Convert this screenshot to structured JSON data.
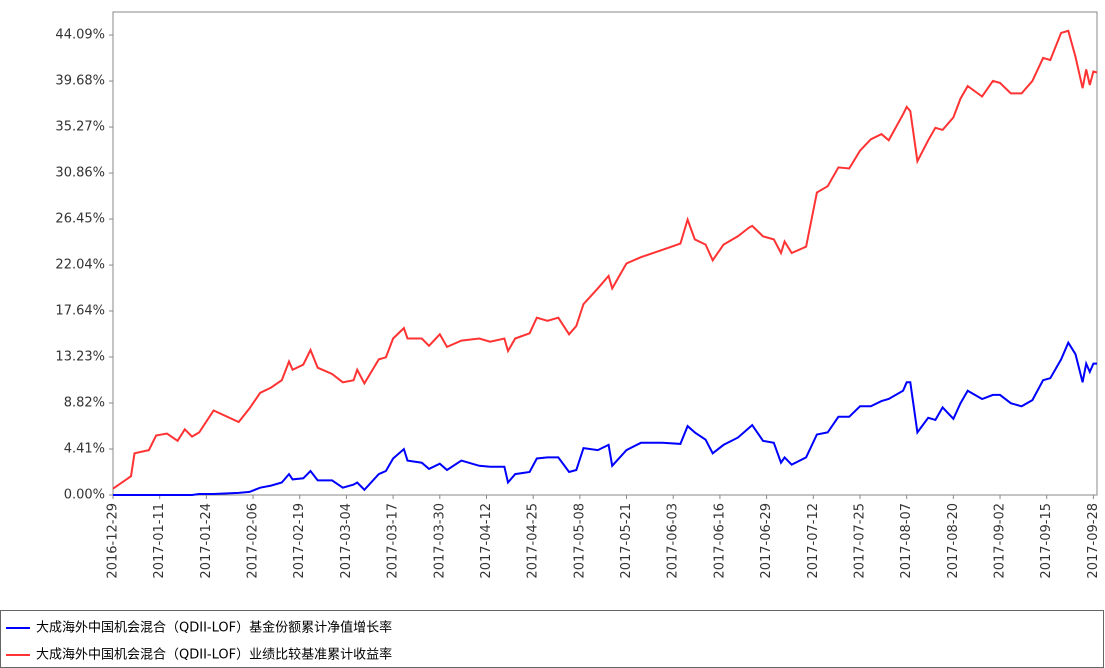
{
  "chart_data": {
    "type": "line",
    "x": [
      "2016-12-29",
      "2017-01-03",
      "2017-01-04",
      "2017-01-08",
      "2017-01-10",
      "2017-01-13",
      "2017-01-16",
      "2017-01-18",
      "2017-01-20",
      "2017-01-22",
      "2017-01-26",
      "2017-02-02",
      "2017-02-05",
      "2017-02-08",
      "2017-02-11",
      "2017-02-14",
      "2017-02-16",
      "2017-02-17",
      "2017-02-20",
      "2017-02-22",
      "2017-02-24",
      "2017-02-28",
      "2017-03-03",
      "2017-03-06",
      "2017-03-07",
      "2017-03-09",
      "2017-03-13",
      "2017-03-15",
      "2017-03-17",
      "2017-03-20",
      "2017-03-21",
      "2017-03-25",
      "2017-03-27",
      "2017-03-30",
      "2017-04-01",
      "2017-04-05",
      "2017-04-10",
      "2017-04-13",
      "2017-04-17",
      "2017-04-18",
      "2017-04-20",
      "2017-04-24",
      "2017-04-26",
      "2017-04-29",
      "2017-05-02",
      "2017-05-05",
      "2017-05-07",
      "2017-05-09",
      "2017-05-13",
      "2017-05-16",
      "2017-05-17",
      "2017-05-21",
      "2017-05-25",
      "2017-05-31",
      "2017-06-05",
      "2017-06-07",
      "2017-06-09",
      "2017-06-12",
      "2017-06-14",
      "2017-06-17",
      "2017-06-21",
      "2017-06-24",
      "2017-06-25",
      "2017-06-28",
      "2017-07-01",
      "2017-07-03",
      "2017-07-04",
      "2017-07-06",
      "2017-07-10",
      "2017-07-13",
      "2017-07-16",
      "2017-07-19",
      "2017-07-22",
      "2017-07-25",
      "2017-07-28",
      "2017-07-31",
      "2017-08-02",
      "2017-08-06",
      "2017-08-07",
      "2017-08-08",
      "2017-08-10",
      "2017-08-13",
      "2017-08-15",
      "2017-08-17",
      "2017-08-20",
      "2017-08-22",
      "2017-08-24",
      "2017-08-28",
      "2017-08-31",
      "2017-09-02",
      "2017-09-05",
      "2017-09-08",
      "2017-09-11",
      "2017-09-14",
      "2017-09-16",
      "2017-09-19",
      "2017-09-21",
      "2017-09-23",
      "2017-09-25",
      "2017-09-26",
      "2017-09-27",
      "2017-09-28",
      "2017-09-29"
    ],
    "series": [
      {
        "name": "大成海外中国机会混合（QDII-LOF）基金份额累计净值增长率",
        "color": "#0000ff",
        "values": [
          0,
          0,
          0,
          0,
          0,
          0,
          0,
          0,
          0,
          0.1,
          0.1,
          0.2,
          0.3,
          0.7,
          0.9,
          1.2,
          2.0,
          1.5,
          1.6,
          2.3,
          1.4,
          1.4,
          0.7,
          1.0,
          1.2,
          0.5,
          2.0,
          2.3,
          3.5,
          4.4,
          3.3,
          3.1,
          2.5,
          3.0,
          2.4,
          3.3,
          2.8,
          2.7,
          2.7,
          1.2,
          2.0,
          2.2,
          3.5,
          3.6,
          3.6,
          2.2,
          2.4,
          4.5,
          4.3,
          4.8,
          2.8,
          4.3,
          5.0,
          5.0,
          4.9,
          6.6,
          6.0,
          5.3,
          4.0,
          4.8,
          5.5,
          6.4,
          6.7,
          5.2,
          5.0,
          3.1,
          3.6,
          2.9,
          3.6,
          5.8,
          6.0,
          7.5,
          7.5,
          8.5,
          8.5,
          9.0,
          9.2,
          10.0,
          10.8,
          10.8,
          6.0,
          7.4,
          7.2,
          8.4,
          7.3,
          8.8,
          10.0,
          9.2,
          9.6,
          9.6,
          8.8,
          8.5,
          9.1,
          11.0,
          11.2,
          13.0,
          14.6,
          13.5,
          10.8,
          12.6,
          11.8,
          12.6,
          12.6
        ]
      },
      {
        "name": "大成海外中国机会混合（QDII-LOF）业绩比较基准累计收益率",
        "color": "#ff3333",
        "values": [
          0.6,
          1.8,
          4.0,
          4.3,
          5.7,
          5.9,
          5.2,
          6.3,
          5.6,
          6.0,
          8.1,
          7.0,
          8.3,
          9.8,
          10.3,
          11.0,
          12.8,
          12.0,
          12.5,
          13.9,
          12.2,
          11.6,
          10.8,
          11.0,
          12.0,
          10.7,
          13.0,
          13.2,
          15.0,
          16.0,
          15.0,
          15.0,
          14.3,
          15.4,
          14.2,
          14.8,
          15.0,
          14.7,
          15.0,
          13.8,
          15.0,
          15.5,
          17.0,
          16.7,
          17.0,
          15.4,
          16.2,
          18.3,
          19.8,
          21.0,
          19.8,
          22.2,
          22.8,
          23.5,
          24.1,
          26.4,
          24.5,
          24.0,
          22.5,
          24.0,
          24.8,
          25.6,
          25.8,
          24.8,
          24.5,
          23.2,
          24.3,
          23.2,
          23.8,
          29.0,
          29.6,
          31.4,
          31.3,
          33.0,
          34.1,
          34.6,
          34.0,
          36.5,
          37.2,
          36.8,
          32.0,
          34.0,
          35.2,
          35.0,
          36.2,
          38.0,
          39.2,
          38.2,
          39.7,
          39.5,
          38.5,
          38.5,
          39.7,
          41.9,
          41.7,
          44.3,
          44.5,
          42.0,
          39.0,
          40.8,
          39.3,
          40.6,
          40.5
        ]
      }
    ],
    "xlim": [
      "2016-12-29",
      "2017-09-29"
    ],
    "xticks": [
      "2016-12-29",
      "2017-01-11",
      "2017-01-24",
      "2017-02-06",
      "2017-02-19",
      "2017-03-04",
      "2017-03-17",
      "2017-03-30",
      "2017-04-12",
      "2017-04-25",
      "2017-05-08",
      "2017-05-21",
      "2017-06-03",
      "2017-06-16",
      "2017-06-29",
      "2017-07-12",
      "2017-07-25",
      "2017-08-07",
      "2017-08-20",
      "2017-09-02",
      "2017-09-15",
      "2017-09-28"
    ],
    "ylim": [
      0,
      46.3
    ],
    "yticks": [
      {
        "value": 0,
        "label": "0.00%"
      },
      {
        "value": 4.41,
        "label": "4.41%"
      },
      {
        "value": 8.82,
        "label": "8.82%"
      },
      {
        "value": 13.23,
        "label": "13.23%"
      },
      {
        "value": 17.64,
        "label": "17.64%"
      },
      {
        "value": 22.04,
        "label": "22.04%"
      },
      {
        "value": 26.45,
        "label": "26.45%"
      },
      {
        "value": 30.86,
        "label": "30.86%"
      },
      {
        "value": 35.27,
        "label": "35.27%"
      },
      {
        "value": 39.68,
        "label": "39.68%"
      },
      {
        "value": 44.09,
        "label": "44.09%"
      }
    ],
    "grid": false,
    "legend": "bottom"
  }
}
